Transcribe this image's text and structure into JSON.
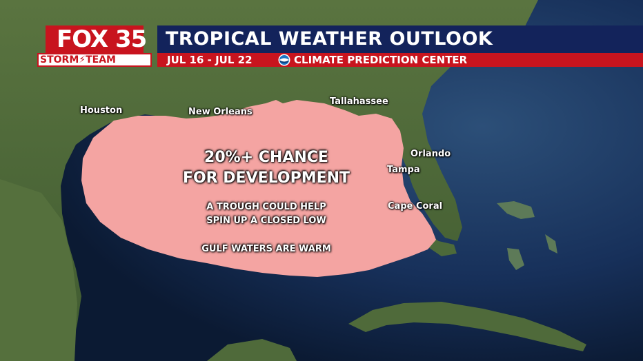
{
  "header": {
    "logo_fox": "FOX 35",
    "logo_storm": "STORM⚡TEAM",
    "title": "TROPICAL WEATHER OUTLOOK",
    "dates": "JUL 16 - JUL 22",
    "source": "CLIMATE PREDICTION CENTER",
    "source_icon": "noaa-logo-icon"
  },
  "cities": {
    "houston": "Houston",
    "new_orleans": "New Orleans",
    "tallahassee": "Tallahassee",
    "orlando": "Orlando",
    "tampa": "Tampa",
    "cape_coral": "Cape Coral"
  },
  "outlook": {
    "headline_1": "20%+ CHANCE",
    "headline_2": "FOR DEVELOPMENT",
    "note_1": "A TROUGH COULD HELP",
    "note_2": "SPIN UP A CLOSED LOW",
    "note_3": "GULF WATERS ARE WARM",
    "area_color": "#f4a4a2"
  },
  "colors": {
    "title_bar": "#13235b",
    "sub_bar": "#c8141e",
    "ocean": "#0d1f3a",
    "land": "#4f6a3a"
  }
}
